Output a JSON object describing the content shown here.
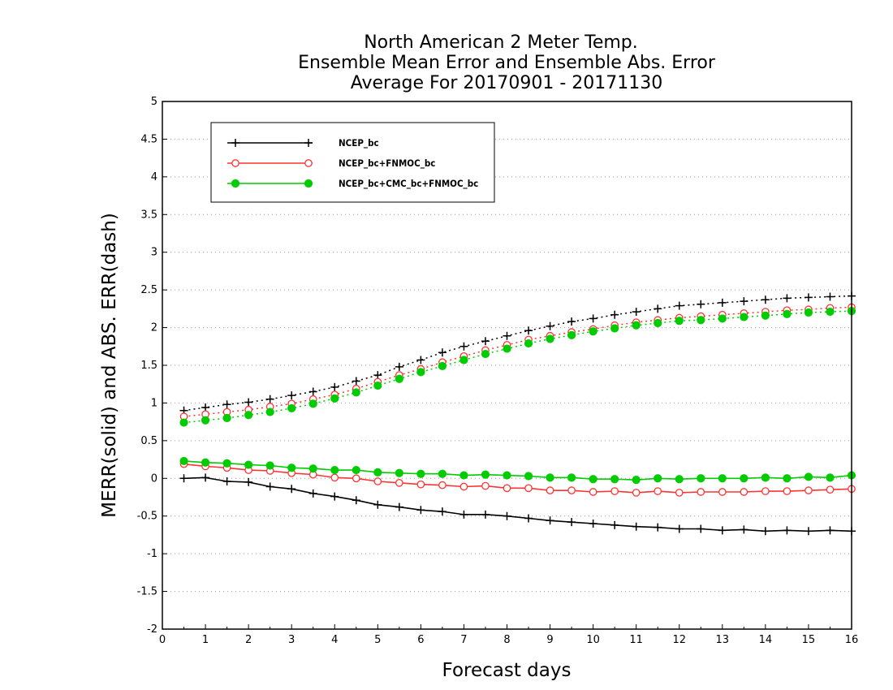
{
  "chart_data": {
    "type": "line",
    "title_lines": [
      "North American 2 Meter Temp.",
      "Ensemble Mean Error and Ensemble Abs. Error",
      "Average For 20170901 - 20171130"
    ],
    "xlabel": "Forecast days",
    "ylabel": "MERR(solid) and ABS. ERR(dash)",
    "xlim": [
      0,
      16
    ],
    "ylim": [
      -2,
      5
    ],
    "xticks": [
      "0",
      "1",
      "2",
      "3",
      "4",
      "5",
      "6",
      "7",
      "8",
      "9",
      "10",
      "11",
      "12",
      "13",
      "14",
      "15",
      "16"
    ],
    "yticks": [
      "-2",
      "-1.5",
      "-1",
      "-0.5",
      "0",
      "0.5",
      "1",
      "1.5",
      "2",
      "2.5",
      "3",
      "3.5",
      "4",
      "4.5",
      "5"
    ],
    "grid": "horizontal dotted",
    "legend_position": "top-left",
    "x": [
      0.5,
      1,
      1.5,
      2,
      2.5,
      3,
      3.5,
      4,
      4.5,
      5,
      5.5,
      6,
      6.5,
      7,
      7.5,
      8,
      8.5,
      9,
      9.5,
      10,
      10.5,
      11,
      11.5,
      12,
      12.5,
      13,
      13.5,
      14,
      14.5,
      15,
      15.5,
      16
    ],
    "series": [
      {
        "name": "NCEP_bc",
        "color": "#000000",
        "marker": "plus",
        "merr": [
          0.0,
          0.01,
          -0.04,
          -0.05,
          -0.11,
          -0.14,
          -0.2,
          -0.24,
          -0.29,
          -0.35,
          -0.38,
          -0.42,
          -0.44,
          -0.48,
          -0.48,
          -0.5,
          -0.53,
          -0.56,
          -0.58,
          -0.6,
          -0.62,
          -0.64,
          -0.65,
          -0.67,
          -0.67,
          -0.69,
          -0.68,
          -0.7,
          -0.69,
          -0.7,
          -0.69,
          -0.7
        ],
        "abs_err": [
          0.9,
          0.94,
          0.98,
          1.01,
          1.05,
          1.1,
          1.15,
          1.21,
          1.29,
          1.37,
          1.48,
          1.57,
          1.67,
          1.75,
          1.82,
          1.89,
          1.96,
          2.02,
          2.08,
          2.12,
          2.17,
          2.21,
          2.25,
          2.29,
          2.31,
          2.33,
          2.35,
          2.37,
          2.39,
          2.4,
          2.41,
          2.42
        ]
      },
      {
        "name": "NCEP_bc+FNMOC_bc",
        "color": "#ff3333",
        "marker": "open-circle",
        "merr": [
          0.19,
          0.16,
          0.14,
          0.11,
          0.1,
          0.07,
          0.05,
          0.01,
          0.0,
          -0.04,
          -0.06,
          -0.08,
          -0.09,
          -0.11,
          -0.1,
          -0.13,
          -0.13,
          -0.16,
          -0.16,
          -0.18,
          -0.17,
          -0.19,
          -0.17,
          -0.19,
          -0.18,
          -0.18,
          -0.18,
          -0.17,
          -0.17,
          -0.16,
          -0.15,
          -0.14
        ],
        "abs_err": [
          0.82,
          0.85,
          0.88,
          0.91,
          0.95,
          0.99,
          1.05,
          1.11,
          1.19,
          1.28,
          1.37,
          1.45,
          1.54,
          1.62,
          1.7,
          1.77,
          1.84,
          1.89,
          1.94,
          1.98,
          2.03,
          2.07,
          2.1,
          2.13,
          2.15,
          2.17,
          2.19,
          2.21,
          2.23,
          2.24,
          2.26,
          2.27
        ]
      },
      {
        "name": "NCEP_bc+CMC_bc+FNMOC_bc",
        "color": "#00cc00",
        "marker": "filled-circle",
        "merr": [
          0.23,
          0.21,
          0.2,
          0.18,
          0.17,
          0.14,
          0.13,
          0.11,
          0.11,
          0.08,
          0.07,
          0.06,
          0.06,
          0.04,
          0.05,
          0.04,
          0.03,
          0.01,
          0.01,
          -0.01,
          -0.01,
          -0.02,
          0.0,
          -0.01,
          0.0,
          0.0,
          0.0,
          0.01,
          0.0,
          0.02,
          0.01,
          0.04
        ],
        "abs_err": [
          0.74,
          0.77,
          0.8,
          0.84,
          0.88,
          0.93,
          0.99,
          1.06,
          1.14,
          1.23,
          1.32,
          1.41,
          1.49,
          1.57,
          1.65,
          1.72,
          1.79,
          1.85,
          1.9,
          1.95,
          1.99,
          2.03,
          2.06,
          2.09,
          2.1,
          2.12,
          2.14,
          2.16,
          2.18,
          2.2,
          2.21,
          2.22
        ]
      }
    ]
  }
}
